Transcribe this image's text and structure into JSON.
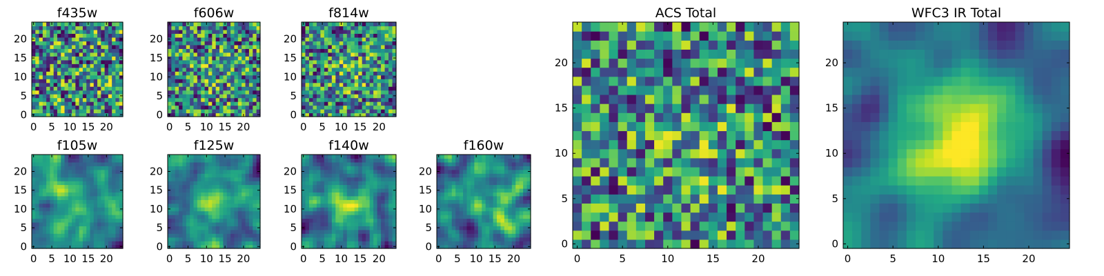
{
  "chart_data": [
    {
      "type": "heatmap",
      "title": "f435w",
      "grid": 25,
      "xlim": [
        0,
        24
      ],
      "ylim": [
        0,
        24
      ],
      "xticks": [
        0,
        5,
        10,
        15,
        20
      ],
      "yticks": [
        0,
        5,
        10,
        15,
        20
      ],
      "colormap": "viridis",
      "seed": 11,
      "smooth": 0,
      "blob": 0
    },
    {
      "type": "heatmap",
      "title": "f606w",
      "grid": 25,
      "xlim": [
        0,
        24
      ],
      "ylim": [
        0,
        24
      ],
      "xticks": [
        0,
        5,
        10,
        15,
        20
      ],
      "yticks": [
        0,
        5,
        10,
        15,
        20
      ],
      "colormap": "viridis",
      "seed": 23,
      "smooth": 0,
      "blob": 0.1
    },
    {
      "type": "heatmap",
      "title": "f814w",
      "grid": 25,
      "xlim": [
        0,
        24
      ],
      "ylim": [
        0,
        24
      ],
      "xticks": [
        0,
        5,
        10,
        15,
        20
      ],
      "yticks": [
        0,
        5,
        10,
        15,
        20
      ],
      "colormap": "viridis",
      "seed": 37,
      "smooth": 0,
      "blob": 0.15
    },
    {
      "type": "heatmap",
      "title": "f105w",
      "grid": 25,
      "xlim": [
        0,
        24
      ],
      "ylim": [
        0,
        24
      ],
      "xticks": [
        0,
        5,
        10,
        15,
        20
      ],
      "yticks": [
        0,
        5,
        10,
        15,
        20
      ],
      "colormap": "viridis",
      "seed": 41,
      "smooth": 2,
      "blob": 0.25
    },
    {
      "type": "heatmap",
      "title": "f125w",
      "grid": 25,
      "xlim": [
        0,
        24
      ],
      "ylim": [
        0,
        24
      ],
      "xticks": [
        0,
        5,
        10,
        15,
        20
      ],
      "yticks": [
        0,
        5,
        10,
        15,
        20
      ],
      "colormap": "viridis",
      "seed": 53,
      "smooth": 2,
      "blob": 0.3
    },
    {
      "type": "heatmap",
      "title": "f140w",
      "grid": 25,
      "xlim": [
        0,
        24
      ],
      "ylim": [
        0,
        24
      ],
      "xticks": [
        0,
        5,
        10,
        15,
        20
      ],
      "yticks": [
        0,
        5,
        10,
        15,
        20
      ],
      "colormap": "viridis",
      "seed": 67,
      "smooth": 2,
      "blob": 0.3
    },
    {
      "type": "heatmap",
      "title": "f160w",
      "grid": 25,
      "xlim": [
        0,
        24
      ],
      "ylim": [
        0,
        24
      ],
      "xticks": [
        0,
        5,
        10,
        15,
        20
      ],
      "yticks": [
        0,
        5,
        10,
        15,
        20
      ],
      "colormap": "viridis",
      "seed": 79,
      "smooth": 2,
      "blob": 0.25
    },
    {
      "type": "heatmap",
      "title": "ACS Total",
      "grid": 25,
      "xlim": [
        0,
        24
      ],
      "ylim": [
        0,
        24
      ],
      "xticks": [
        0,
        5,
        10,
        15,
        20
      ],
      "yticks": [
        0,
        5,
        10,
        15,
        20
      ],
      "colormap": "viridis",
      "seed": 97,
      "smooth": 0,
      "blob": 0.12
    },
    {
      "type": "heatmap",
      "title": "WFC3 IR Total",
      "grid": 25,
      "xlim": [
        0,
        24
      ],
      "ylim": [
        0,
        24
      ],
      "xticks": [
        0,
        5,
        10,
        15,
        20
      ],
      "yticks": [
        0,
        5,
        10,
        15,
        20
      ],
      "colormap": "viridis",
      "seed": 113,
      "smooth": 3,
      "blob": 0.75
    }
  ]
}
